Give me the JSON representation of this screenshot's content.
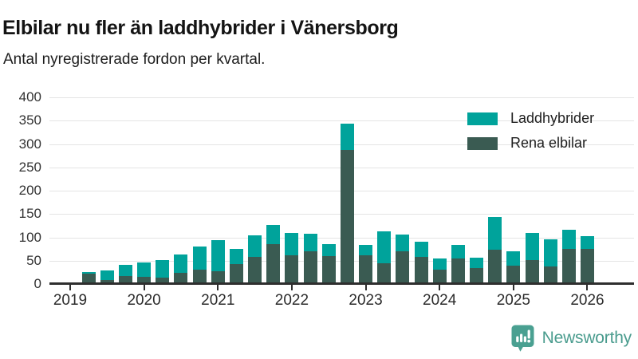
{
  "header": {
    "title": "Elbilar nu fler än laddhybrider i Vänersborg",
    "subtitle": "Antal nyregistrerade fordon per kvartal."
  },
  "chart_data": {
    "type": "bar",
    "stacked": true,
    "title": "Elbilar nu fler än laddhybrider i Vänersborg",
    "subtitle": "Antal nyregistrerade fordon per kvartal.",
    "xlabel": "",
    "ylabel": "",
    "ylim": [
      0,
      400
    ],
    "y_ticks": [
      0,
      50,
      100,
      150,
      200,
      250,
      300,
      350,
      400
    ],
    "grid": true,
    "legend_position": "top-right",
    "x": [
      "2019 Q1",
      "2019 Q2",
      "2019 Q3",
      "2019 Q4",
      "2020 Q1",
      "2020 Q2",
      "2020 Q3",
      "2020 Q4",
      "2021 Q1",
      "2021 Q2",
      "2021 Q3",
      "2021 Q4",
      "2022 Q1",
      "2022 Q2",
      "2022 Q3",
      "2022 Q4",
      "2023 Q1",
      "2023 Q2",
      "2023 Q3",
      "2023 Q4",
      "2024 Q1",
      "2024 Q2",
      "2024 Q3",
      "2024 Q4",
      "2025 Q1",
      "2025 Q2",
      "2025 Q3",
      "2025 Q4",
      "2026 Q1"
    ],
    "x_tick_labels": [
      "2019",
      "2020",
      "2021",
      "2022",
      "2023",
      "2024",
      "2025",
      "2026"
    ],
    "x_tick_quarter_indices": [
      0,
      4,
      8,
      12,
      16,
      20,
      24,
      28
    ],
    "series": [
      {
        "name": "Laddhybrider",
        "color": "#00a39b",
        "values": [
          0,
          3,
          20,
          24,
          30,
          38,
          40,
          50,
          67,
          33,
          46,
          42,
          49,
          37,
          26,
          56,
          23,
          68,
          36,
          32,
          24,
          29,
          22,
          71,
          31,
          59,
          58,
          40,
          27
        ]
      },
      {
        "name": "Rena elbilar",
        "color": "#3a5b52",
        "values": [
          0,
          22,
          9,
          17,
          16,
          14,
          24,
          30,
          27,
          42,
          58,
          85,
          61,
          70,
          60,
          287,
          61,
          45,
          70,
          58,
          30,
          55,
          34,
          73,
          39,
          51,
          37,
          76,
          75
        ]
      }
    ]
  },
  "colors": {
    "laddhybrider": "#00a39b",
    "rena_elbilar": "#3a5b52",
    "gridline": "#e4e4e4",
    "axis": "#2e2e2e",
    "brand": "#4a9c8e"
  },
  "footer": {
    "brand": "Newsworthy"
  }
}
